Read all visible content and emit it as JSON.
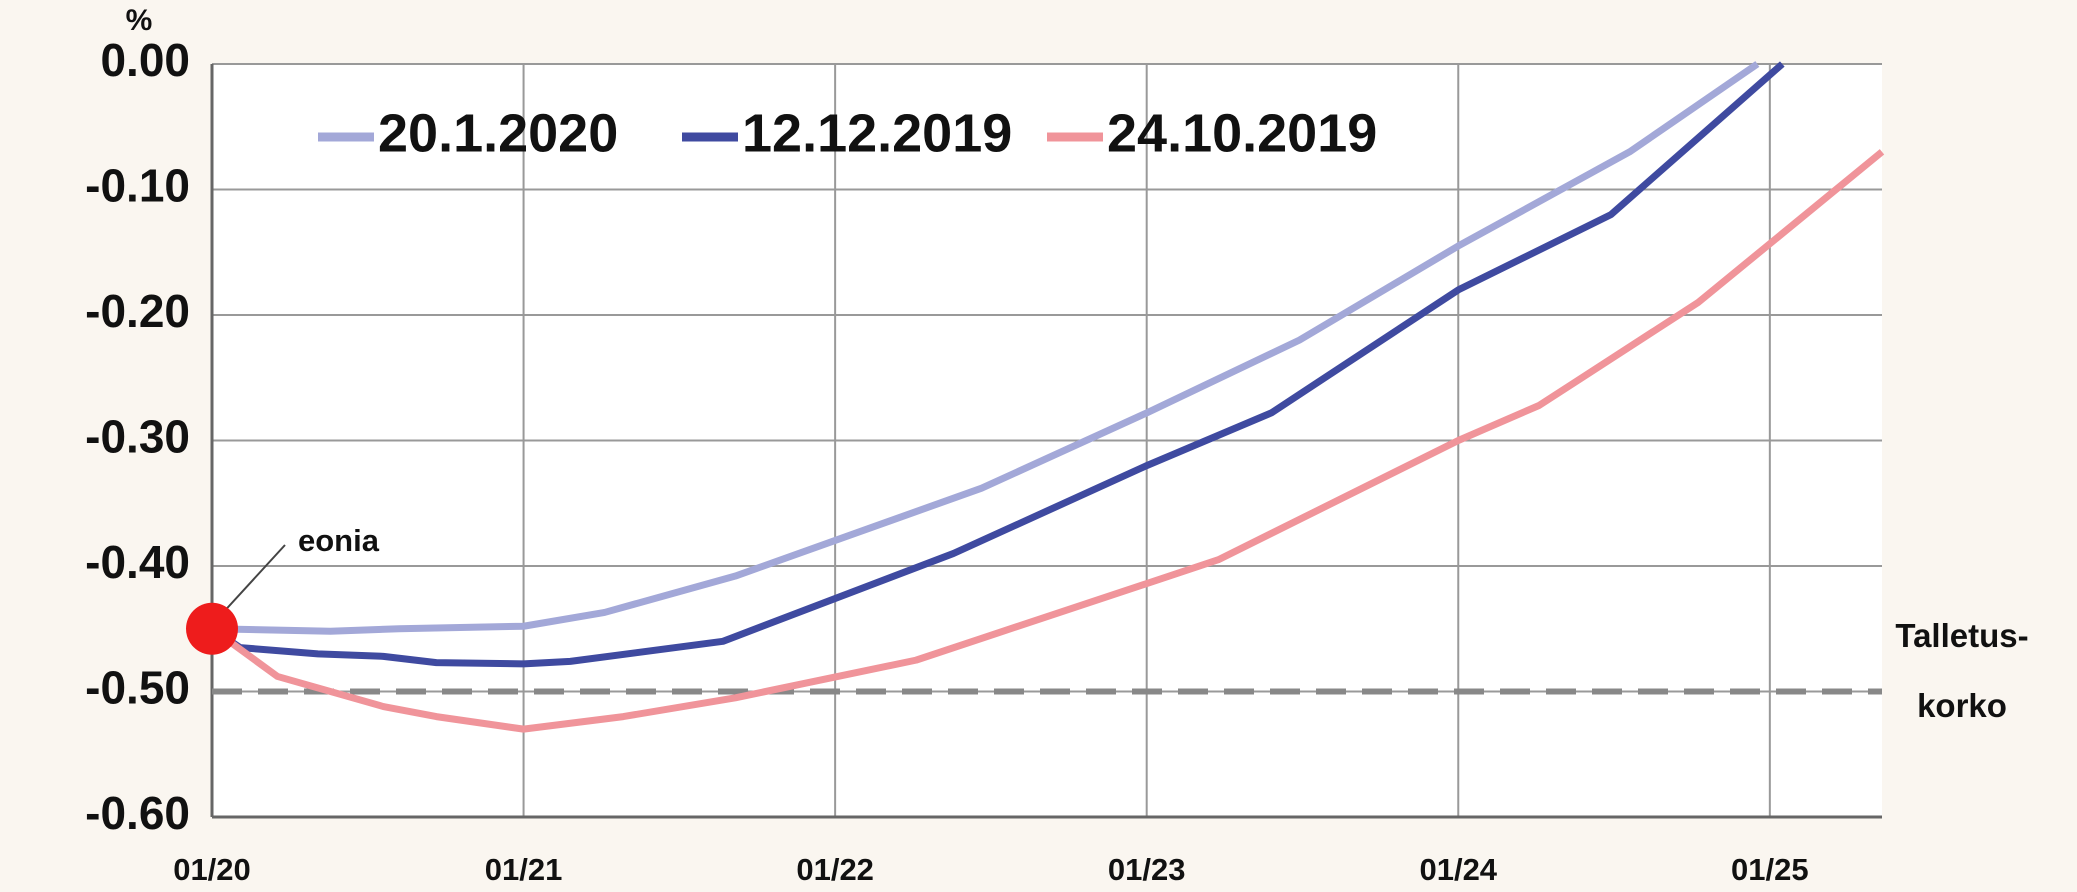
{
  "chart_data": {
    "type": "line",
    "y_label": "%",
    "xlim": [
      2020,
      2025.36
    ],
    "ylim": [
      -0.6,
      0
    ],
    "xticks": [
      {
        "value": 2020,
        "label": "01/20"
      },
      {
        "value": 2021,
        "label": "01/21"
      },
      {
        "value": 2022,
        "label": "01/22"
      },
      {
        "value": 2023,
        "label": "01/23"
      },
      {
        "value": 2024,
        "label": "01/24"
      },
      {
        "value": 2025,
        "label": "01/25"
      }
    ],
    "yticks": [
      {
        "value": 0,
        "label": "0.00"
      },
      {
        "value": -0.1,
        "label": "-0.10"
      },
      {
        "value": -0.2,
        "label": "-0.20"
      },
      {
        "value": -0.3,
        "label": "-0.30"
      },
      {
        "value": -0.4,
        "label": "-0.40"
      },
      {
        "value": -0.5,
        "label": "-0.50"
      },
      {
        "value": -0.6,
        "label": "-0.60"
      }
    ],
    "grid": true,
    "series": [
      {
        "name": "20.1.2020",
        "color": "#a3a8d8",
        "x": [
          2020,
          2020.38,
          2020.6,
          2021,
          2021.26,
          2021.68,
          2022.47,
          2023,
          2023.49,
          2024,
          2024.55,
          2024.96
        ],
        "values": [
          -0.45,
          -0.452,
          -0.45,
          -0.448,
          -0.437,
          -0.408,
          -0.338,
          -0.278,
          -0.22,
          -0.145,
          -0.07,
          0
        ]
      },
      {
        "name": "12.12.2019",
        "color": "#3f4aa0",
        "x": [
          2020,
          2020.09,
          2020.34,
          2020.55,
          2020.72,
          2021,
          2021.15,
          2021.64,
          2022.38,
          2023,
          2023.4,
          2024,
          2024.49,
          2025.04
        ],
        "values": [
          -0.45,
          -0.465,
          -0.47,
          -0.472,
          -0.477,
          -0.478,
          -0.476,
          -0.46,
          -0.39,
          -0.32,
          -0.278,
          -0.18,
          -0.12,
          0
        ]
      },
      {
        "name": "24.10.2019",
        "color": "#f0949a",
        "x": [
          2020,
          2020.21,
          2020.55,
          2020.72,
          2021,
          2021.32,
          2021.68,
          2022.26,
          2023.23,
          2024,
          2024.26,
          2024.77,
          2025.36
        ],
        "values": [
          -0.45,
          -0.488,
          -0.512,
          -0.52,
          -0.53,
          -0.52,
          -0.505,
          -0.475,
          -0.395,
          -0.3,
          -0.272,
          -0.19,
          -0.07
        ]
      }
    ],
    "reference_line": {
      "value": -0.5,
      "label": [
        "Talletus-",
        "korko"
      ]
    },
    "annotations": [
      {
        "text": "eonia",
        "x": 2020,
        "y": -0.45
      }
    ]
  }
}
